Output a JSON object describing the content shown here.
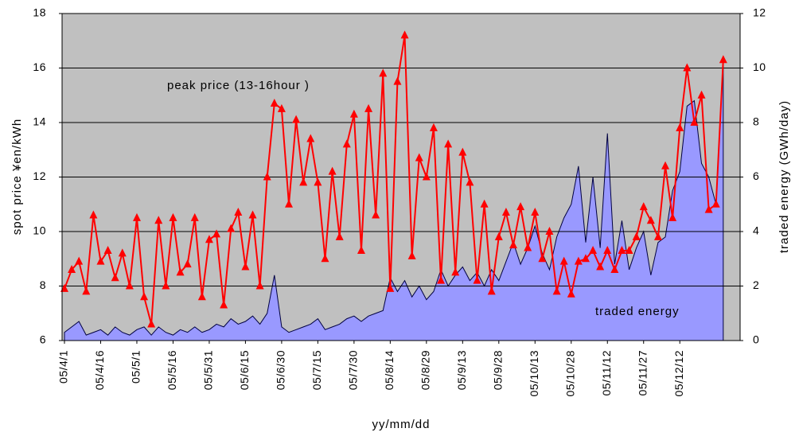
{
  "chart_data": {
    "type": "line-area",
    "ylabel": "spot price  ¥en/kWh",
    "y2label": "traded energy (GWh/day)",
    "xlabel": "yy/mm/dd",
    "categories": [
      "05/4/1",
      null,
      null,
      null,
      null,
      "05/4/16",
      null,
      null,
      null,
      null,
      "05/5/1",
      null,
      null,
      null,
      null,
      "05/5/16",
      null,
      null,
      null,
      null,
      "05/5/31",
      null,
      null,
      null,
      null,
      "05/6/15",
      null,
      null,
      null,
      null,
      "05/6/30",
      null,
      null,
      null,
      null,
      "05/7/15",
      null,
      null,
      null,
      null,
      "05/7/30",
      null,
      null,
      null,
      null,
      "05/8/14",
      null,
      null,
      null,
      null,
      "05/8/29",
      null,
      null,
      null,
      null,
      "05/9/13",
      null,
      null,
      null,
      null,
      "05/9/28",
      null,
      null,
      null,
      null,
      "05/10/13",
      null,
      null,
      null,
      null,
      "05/10/28",
      null,
      null,
      null,
      null,
      "05/11/12",
      null,
      null,
      null,
      null,
      "05/11/27",
      null,
      null,
      null,
      null,
      "05/12/12",
      null,
      null,
      null,
      null,
      null,
      null
    ],
    "series": [
      {
        "name": "traded energy",
        "color": "#9999ff",
        "axis": "y2",
        "kind": "area",
        "values": [
          0.3,
          0.5,
          0.7,
          0.2,
          0.3,
          0.4,
          0.2,
          0.5,
          0.3,
          0.2,
          0.4,
          0.5,
          0.2,
          0.5,
          0.3,
          0.2,
          0.4,
          0.3,
          0.5,
          0.3,
          0.4,
          0.6,
          0.5,
          0.8,
          0.6,
          0.7,
          0.9,
          0.6,
          1.0,
          2.4,
          0.5,
          0.3,
          0.4,
          0.5,
          0.6,
          0.8,
          0.4,
          0.5,
          0.6,
          0.8,
          0.9,
          0.7,
          0.9,
          1.0,
          1.1,
          2.3,
          1.8,
          2.2,
          1.6,
          2.0,
          1.5,
          1.8,
          2.6,
          2.0,
          2.4,
          2.7,
          2.2,
          2.5,
          2.0,
          2.6,
          2.2,
          2.9,
          3.6,
          2.8,
          3.4,
          4.2,
          3.2,
          2.6,
          3.8,
          4.5,
          5.0,
          6.4,
          3.6,
          6.0,
          3.4,
          7.6,
          2.8,
          4.4,
          2.6,
          3.4,
          4.0,
          2.4,
          3.6,
          3.8,
          5.5,
          6.2,
          8.6,
          8.8,
          6.5,
          6.0,
          5.0,
          10.3
        ]
      },
      {
        "name": "peak price (13-16hour )",
        "color": "#ff0000",
        "kind": "line",
        "values": [
          7.9,
          8.6,
          8.9,
          7.8,
          10.6,
          8.9,
          9.3,
          8.3,
          9.2,
          8.0,
          10.5,
          7.6,
          6.6,
          10.4,
          8.0,
          10.5,
          8.5,
          8.8,
          10.5,
          7.6,
          9.7,
          9.9,
          7.3,
          10.1,
          10.7,
          8.7,
          10.6,
          8.0,
          12.0,
          14.7,
          14.5,
          11.0,
          14.1,
          11.8,
          13.4,
          11.8,
          9.0,
          12.2,
          9.8,
          13.2,
          14.3,
          9.3,
          14.5,
          10.6,
          15.8,
          7.9,
          15.5,
          17.2,
          9.1,
          12.7,
          12.0,
          13.8,
          8.2,
          13.2,
          8.5,
          12.9,
          11.8,
          8.2,
          11.0,
          7.8,
          9.8,
          10.7,
          9.5,
          10.9,
          9.4,
          10.7,
          9.0,
          10.0,
          7.8,
          8.9,
          7.7,
          8.9,
          9.0,
          9.3,
          8.7,
          9.3,
          8.6,
          9.3,
          9.3,
          9.8,
          10.9,
          10.4,
          9.8,
          12.4,
          10.5,
          13.8,
          16.0,
          14.0,
          15.0,
          10.8,
          11.0,
          16.3
        ]
      }
    ],
    "ylim": [
      6,
      18
    ],
    "yticks": [
      6,
      8,
      10,
      12,
      14,
      16,
      18
    ],
    "y2lim": [
      0,
      12
    ],
    "y2ticks": [
      0,
      2,
      4,
      6,
      8,
      10,
      12
    ],
    "grid": true
  }
}
